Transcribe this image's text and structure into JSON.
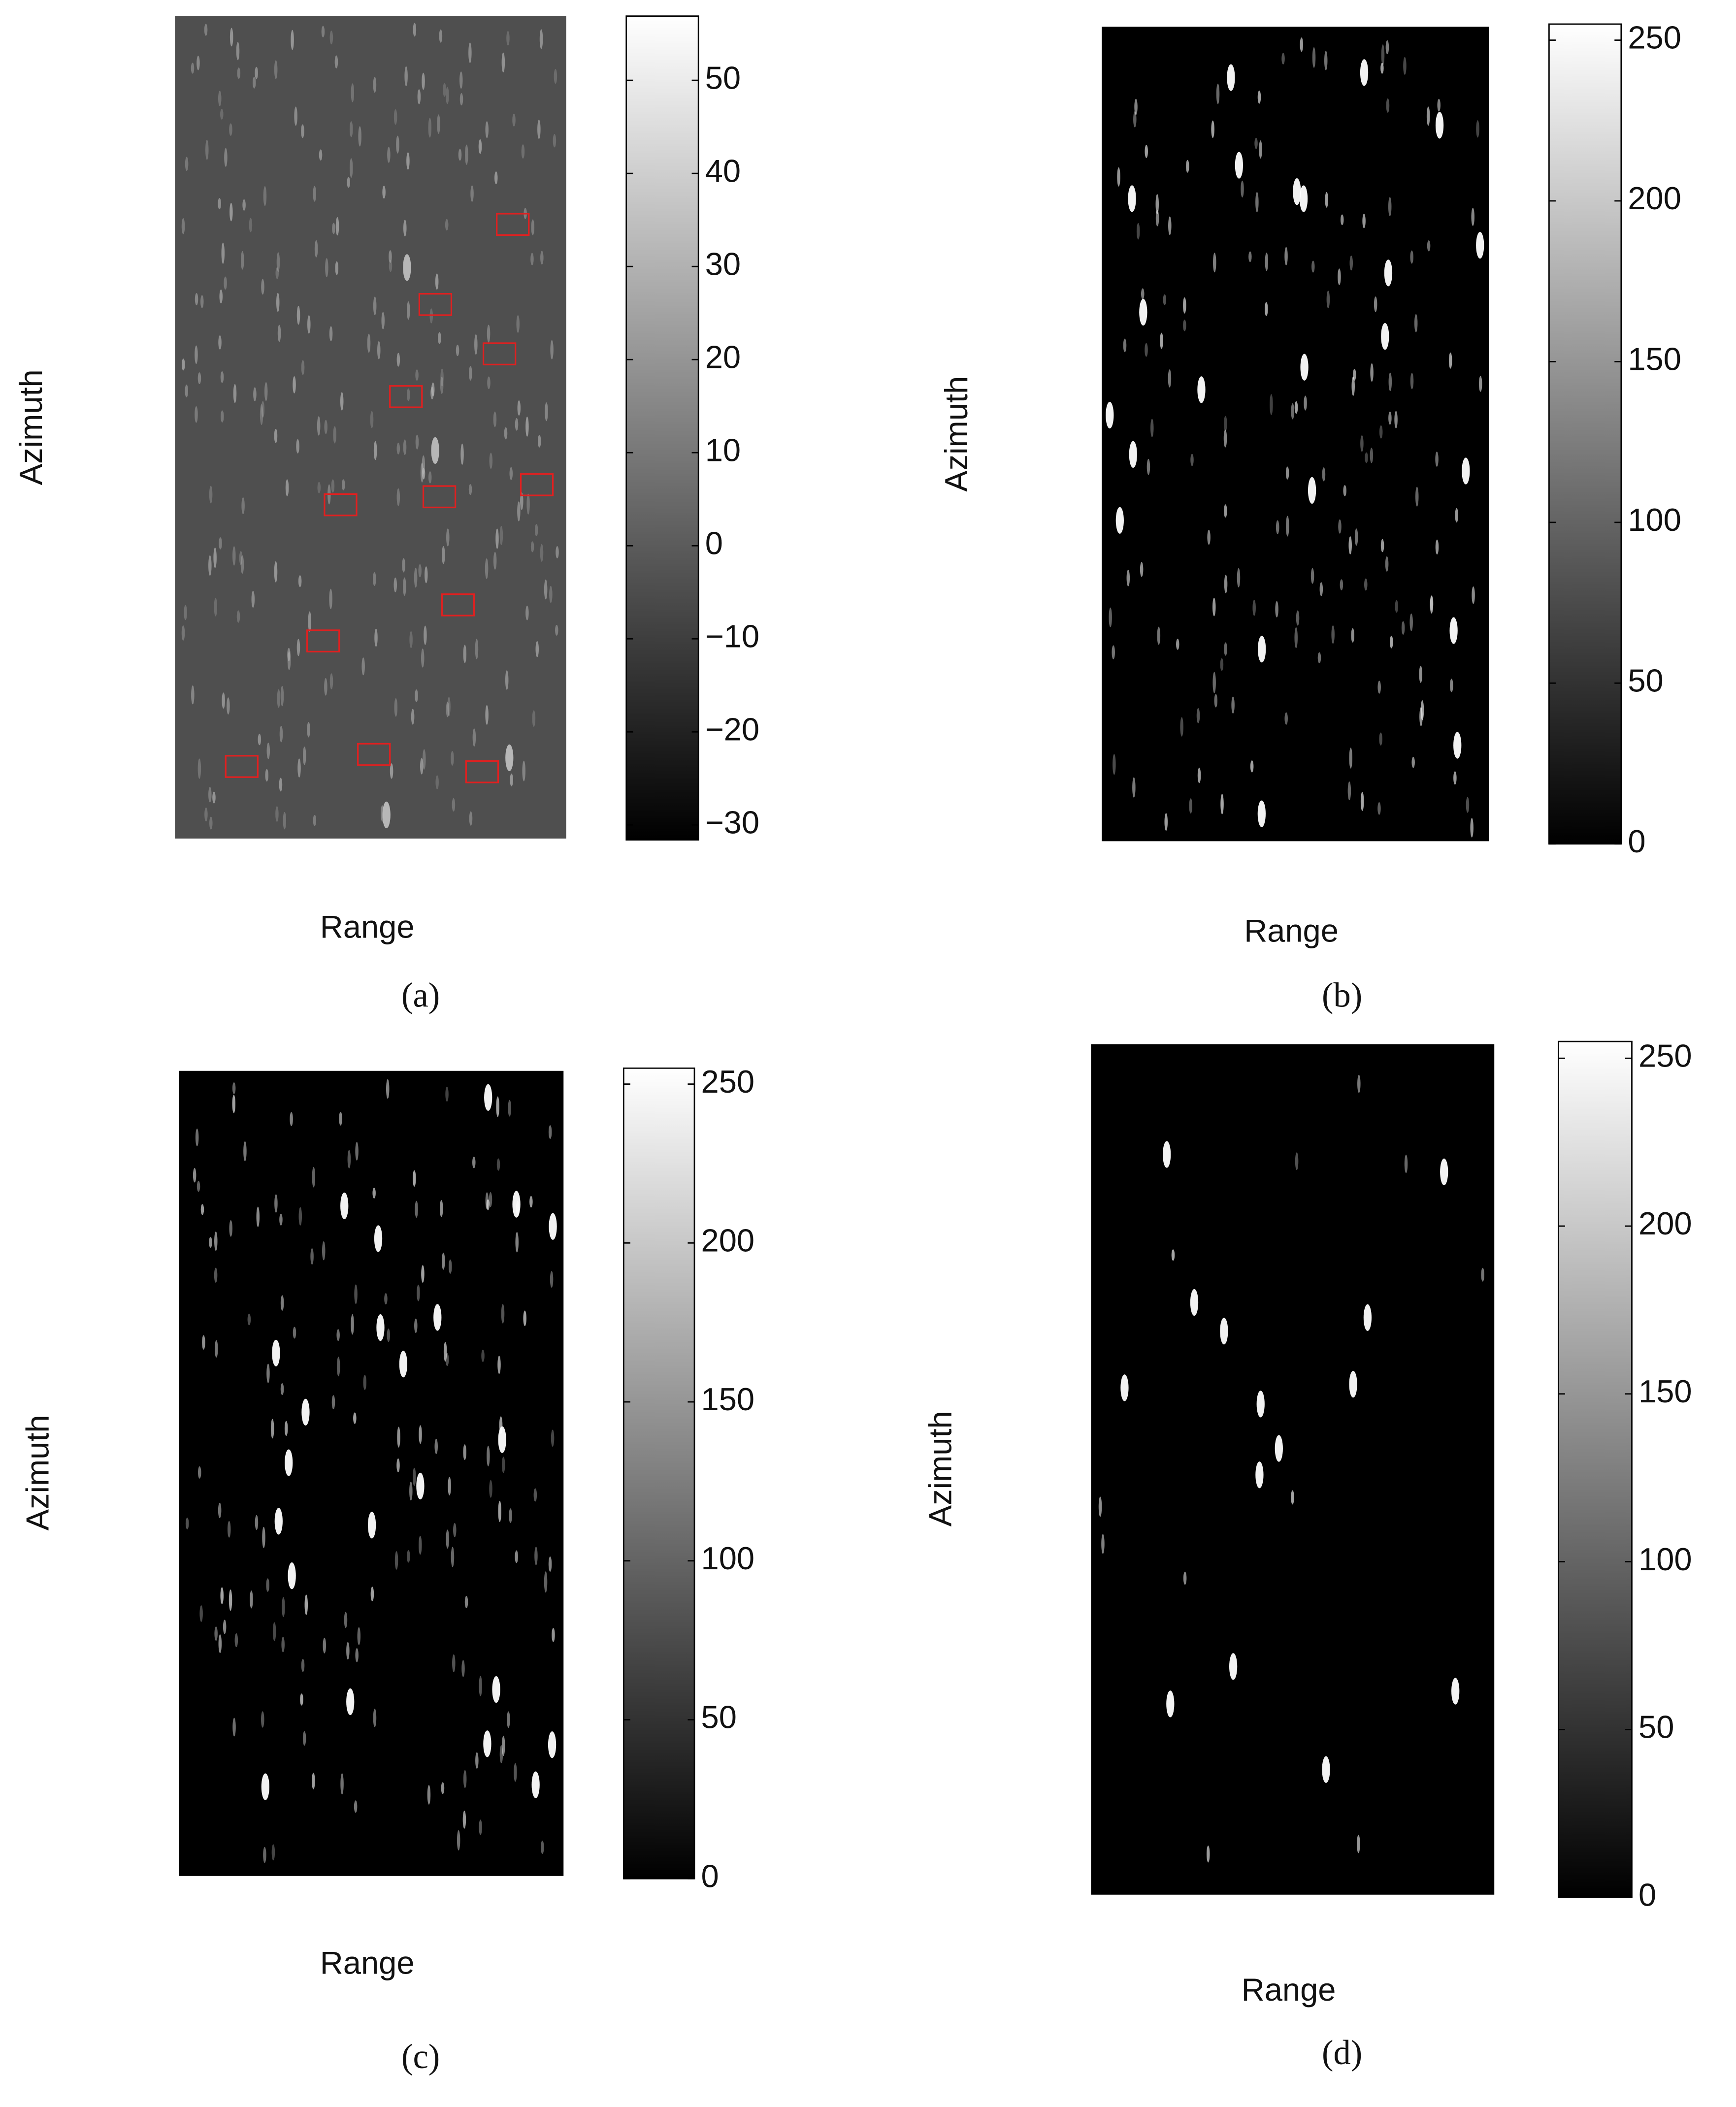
{
  "chart_data": [
    {
      "type": "heatmap",
      "label": "(a)",
      "xlabel": "Range",
      "ylabel": "Azimuth",
      "background": "#4f4f4f",
      "spot_color": "#bdbdbd",
      "annotation_color": "#e02020",
      "clim": [
        -31.6,
        56.9
      ],
      "cticks": [
        {
          "value": -30,
          "label": "−30"
        },
        {
          "value": -20,
          "label": "−20"
        },
        {
          "value": -10,
          "label": "−10"
        },
        0,
        10,
        20,
        30,
        40,
        50
      ]
    },
    {
      "type": "heatmap",
      "label": "(b)",
      "xlabel": "Range",
      "ylabel": "Azimuth",
      "background": "#000000",
      "spot_color": "#ffffff",
      "clim": [
        0,
        255
      ],
      "cticks": [
        0,
        50,
        100,
        150,
        200,
        250
      ]
    },
    {
      "type": "heatmap",
      "label": "(c)",
      "xlabel": "Range",
      "ylabel": "Azimuth",
      "background": "#000000",
      "spot_color": "#ffffff",
      "clim": [
        0,
        255
      ],
      "cticks": [
        0,
        50,
        100,
        150,
        200,
        250
      ]
    },
    {
      "type": "heatmap",
      "label": "(d)",
      "xlabel": "Range",
      "ylabel": "Azimuth",
      "background": "#000000",
      "spot_color": "#ffffff",
      "clim": [
        0,
        255
      ],
      "cticks": [
        0,
        50,
        100,
        150,
        200,
        250
      ]
    }
  ]
}
